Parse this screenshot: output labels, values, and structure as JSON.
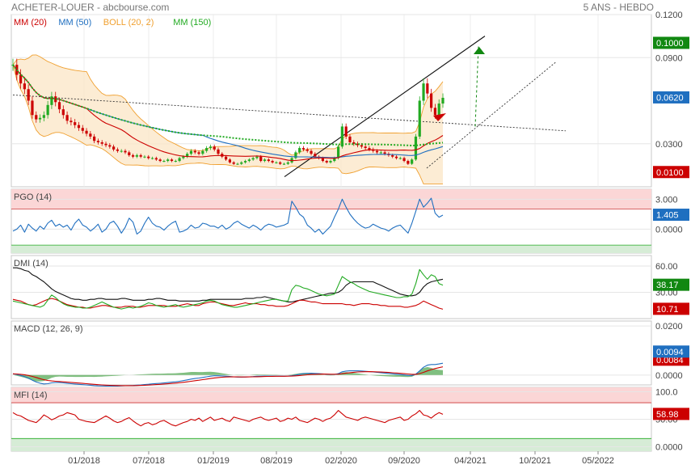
{
  "header": {
    "title": "ACHETER-LOUER - abcbourse.com",
    "period": "5 ANS - HEBDO"
  },
  "colors": {
    "ma20": "#cc0000",
    "ma50": "#1f6fc0",
    "boll": "#f0a030",
    "ma150": "#22aa22",
    "up": "#22aa22",
    "down": "#cc0000",
    "pgo": "#1f6fc0",
    "macd": "#1f6fc0",
    "signal": "#cc0000",
    "hist": "#55aa55",
    "mfi": "#cc0000"
  },
  "chart_data": [
    {
      "type": "line",
      "panel": "price",
      "legend": [
        "MM (20)",
        "MM (50)",
        "BOLL (20, 2)",
        "MM (150)"
      ],
      "x_ticks": [
        "01/2018",
        "07/2018",
        "01/2019",
        "08/2019",
        "02/2020",
        "09/2020",
        "04/2021",
        "10/2021",
        "05/2022"
      ],
      "y_ticks": [
        "0.1200",
        "0.0900",
        "0.0300"
      ],
      "ylim": [
        0.0,
        0.12
      ],
      "badges": [
        {
          "label": "0.1000",
          "value": 0.1,
          "color": "#118811"
        },
        {
          "label": "0.0620",
          "value": 0.062,
          "color": "#1f6fc0"
        },
        {
          "label": "0.0100",
          "value": 0.01,
          "color": "#cc0000"
        }
      ],
      "close": [
        0.085,
        0.078,
        0.072,
        0.068,
        0.06,
        0.05,
        0.047,
        0.048,
        0.05,
        0.057,
        0.063,
        0.059,
        0.054,
        0.05,
        0.046,
        0.045,
        0.043,
        0.041,
        0.039,
        0.037,
        0.035,
        0.032,
        0.031,
        0.03,
        0.029,
        0.028,
        0.026,
        0.025,
        0.025,
        0.024,
        0.022,
        0.021,
        0.022,
        0.021,
        0.021,
        0.02,
        0.02,
        0.019,
        0.018,
        0.018,
        0.019,
        0.018,
        0.018,
        0.02,
        0.021,
        0.023,
        0.025,
        0.024,
        0.023,
        0.025,
        0.027,
        0.028,
        0.026,
        0.023,
        0.021,
        0.019,
        0.017,
        0.016,
        0.016,
        0.017,
        0.018,
        0.019,
        0.02,
        0.021,
        0.018,
        0.019,
        0.018,
        0.017,
        0.017,
        0.016,
        0.016,
        0.017,
        0.02,
        0.024,
        0.027,
        0.026,
        0.025,
        0.023,
        0.021,
        0.02,
        0.018,
        0.017,
        0.018,
        0.02,
        0.028,
        0.042,
        0.035,
        0.031,
        0.03,
        0.029,
        0.028,
        0.027,
        0.026,
        0.025,
        0.024,
        0.024,
        0.023,
        0.022,
        0.021,
        0.02,
        0.02,
        0.018,
        0.016,
        0.019,
        0.035,
        0.06,
        0.072,
        0.065,
        0.055,
        0.05,
        0.058,
        0.062
      ]
    },
    {
      "type": "line",
      "panel": "pgo",
      "legend": [
        "PGO (14)"
      ],
      "y_ticks": [
        "3.000",
        "0.0000"
      ],
      "ylim": [
        -2.4,
        4.0
      ],
      "badge": {
        "label": "1.405",
        "value": 1.405,
        "color": "#1f6fc0"
      },
      "values": [
        -0.2,
        0.0,
        0.4,
        -0.3,
        0.5,
        0.1,
        -0.2,
        0.3,
        0.0,
        0.6,
        0.9,
        0.3,
        0.5,
        0.2,
        0.4,
        -0.1,
        0.6,
        1.0,
        0.4,
        0.2,
        -0.2,
        0.1,
        0.5,
        -0.3,
        0.0,
        0.6,
        0.8,
        0.3,
        -0.4,
        0.2,
        1.1,
        0.7,
        -0.5,
        -0.2,
        0.6,
        1.2,
        0.6,
        0.3,
        0.2,
        -0.1,
        0.3,
        0.6,
        0.8,
        -0.3,
        -0.2,
        0.0,
        0.4,
        0.1,
        0.2,
        0.6,
        0.5,
        0.3,
        0.3,
        0.1,
        0.4,
        0.0,
        0.2,
        0.6,
        0.8,
        0.5,
        0.3,
        0.1,
        0.4,
        0.2,
        -0.1,
        0.3,
        0.5,
        0.4,
        0.2,
        0.3,
        0.4,
        0.6,
        2.8,
        2.2,
        1.5,
        1.2,
        0.4,
        0.1,
        -0.3,
        0.0,
        -0.5,
        -0.1,
        0.3,
        1.2,
        2.0,
        3.0,
        2.2,
        1.5,
        1.0,
        0.6,
        0.3,
        0.1,
        0.2,
        0.5,
        0.3,
        0.1,
        0.0,
        -0.2,
        0.1,
        0.3,
        0.4,
        0.0,
        -0.4,
        0.6,
        1.8,
        3.0,
        2.2,
        2.6,
        3.1,
        1.6,
        1.2,
        1.405
      ]
    },
    {
      "type": "line",
      "panel": "dmi",
      "legend": [
        "DMI (14)"
      ],
      "y_ticks": [
        "60.00",
        "30.00"
      ],
      "ylim": [
        0,
        72
      ],
      "badges": [
        {
          "label": "38.17",
          "value": 38.17,
          "color": "#118811"
        },
        {
          "label": "10.71",
          "value": 10.71,
          "color": "#cc0000"
        }
      ],
      "series": [
        {
          "values": [
            58,
            58,
            57,
            55,
            54,
            50,
            48,
            45,
            42,
            38,
            34,
            31,
            29,
            27,
            25,
            23,
            22,
            22,
            21,
            21,
            22,
            22,
            23,
            23,
            22,
            22,
            22,
            22,
            23,
            23,
            22,
            21,
            21,
            21,
            21,
            22,
            22,
            23,
            23,
            22,
            21,
            21,
            21,
            20,
            20,
            20,
            20,
            20,
            20,
            21,
            21,
            22,
            22,
            22,
            22,
            22,
            22,
            22,
            22,
            22,
            23,
            23,
            23,
            24,
            24,
            25,
            24,
            23,
            22,
            21,
            20,
            19,
            19,
            20,
            21,
            22,
            23,
            24,
            25,
            26,
            27,
            28,
            29,
            29,
            30,
            33,
            38,
            41,
            42,
            42,
            42,
            42,
            42,
            42,
            40,
            38,
            36,
            34,
            32,
            30,
            28,
            27,
            26,
            26,
            27,
            30,
            36,
            40,
            42,
            43,
            44,
            45
          ]
        },
        {
          "values": [
            22,
            21,
            20,
            18,
            16,
            15,
            16,
            18,
            20,
            22,
            23,
            22,
            20,
            18,
            16,
            15,
            14,
            13,
            13,
            12,
            12,
            13,
            14,
            15,
            15,
            14,
            13,
            13,
            13,
            14,
            14,
            14,
            13,
            13,
            14,
            15,
            15,
            15,
            15,
            15,
            14,
            14,
            14,
            15,
            16,
            17,
            16,
            15,
            15,
            17,
            18,
            19,
            19,
            18,
            17,
            16,
            15,
            15,
            16,
            17,
            18,
            17,
            17,
            17,
            16,
            16,
            15,
            15,
            14,
            14,
            14,
            15,
            17,
            19,
            21,
            21,
            20,
            19,
            19,
            18,
            17,
            17,
            17,
            17,
            17,
            17,
            16,
            16,
            15,
            16,
            17,
            17,
            17,
            16,
            16,
            15,
            15,
            14,
            14,
            14,
            14,
            13,
            13,
            14,
            15,
            17,
            20,
            18,
            16,
            14,
            12,
            10.71
          ]
        },
        {
          "values": [
            20,
            19,
            18,
            17,
            16,
            15,
            14,
            13,
            15,
            21,
            27,
            24,
            20,
            17,
            15,
            14,
            13,
            13,
            12,
            12,
            13,
            15,
            17,
            19,
            17,
            15,
            13,
            12,
            11,
            12,
            13,
            12,
            13,
            14,
            16,
            18,
            17,
            15,
            14,
            13,
            14,
            15,
            16,
            14,
            13,
            14,
            15,
            16,
            17,
            18,
            20,
            21,
            20,
            18,
            16,
            15,
            14,
            13,
            13,
            14,
            15,
            16,
            17,
            18,
            19,
            20,
            21,
            22,
            22,
            21,
            20,
            20,
            33,
            38,
            37,
            35,
            34,
            32,
            30,
            28,
            27,
            26,
            27,
            28,
            38,
            48,
            45,
            42,
            40,
            37,
            35,
            33,
            31,
            30,
            29,
            28,
            27,
            26,
            25,
            24,
            24,
            25,
            25,
            28,
            40,
            56,
            50,
            45,
            50,
            48,
            40,
            38.17
          ]
        }
      ]
    },
    {
      "type": "line",
      "panel": "macd",
      "legend": [
        "MACD (12, 26, 9)"
      ],
      "y_ticks": [
        "0.0200",
        "0.0000"
      ],
      "ylim": [
        -0.004,
        0.022
      ],
      "badges": [
        {
          "label": "0.0094",
          "value": 0.0094,
          "color": "#1f6fc0"
        },
        {
          "label": "0.0084",
          "value": 0.0084,
          "color": "#cc0000"
        }
      ]
    },
    {
      "type": "line",
      "panel": "mfi",
      "legend": [
        "MFI (14)"
      ],
      "y_ticks": [
        "100.0",
        "50.00",
        "0.0000"
      ],
      "ylim": [
        -8,
        108
      ],
      "badge": {
        "label": "58.98",
        "value": 58.98,
        "color": "#cc0000"
      },
      "values": [
        62,
        58,
        56,
        52,
        48,
        46,
        44,
        50,
        58,
        54,
        49,
        52,
        56,
        58,
        62,
        60,
        58,
        50,
        48,
        46,
        45,
        44,
        48,
        52,
        56,
        52,
        47,
        44,
        46,
        50,
        53,
        47,
        42,
        38,
        42,
        44,
        40,
        42,
        46,
        48,
        44,
        40,
        38,
        41,
        44,
        46,
        50,
        48,
        52,
        46,
        50,
        54,
        48,
        50,
        52,
        48,
        46,
        54,
        52,
        50,
        48,
        46,
        50,
        52,
        54,
        50,
        48,
        50,
        52,
        46,
        48,
        52,
        50,
        54,
        48,
        46,
        44,
        48,
        52,
        50,
        46,
        50,
        52,
        58,
        66,
        60,
        54,
        52,
        50,
        48,
        52,
        54,
        52,
        50,
        48,
        46,
        44,
        48,
        50,
        52,
        54,
        48,
        50,
        56,
        60,
        66,
        58,
        56,
        52,
        58,
        62,
        58.98
      ]
    }
  ]
}
